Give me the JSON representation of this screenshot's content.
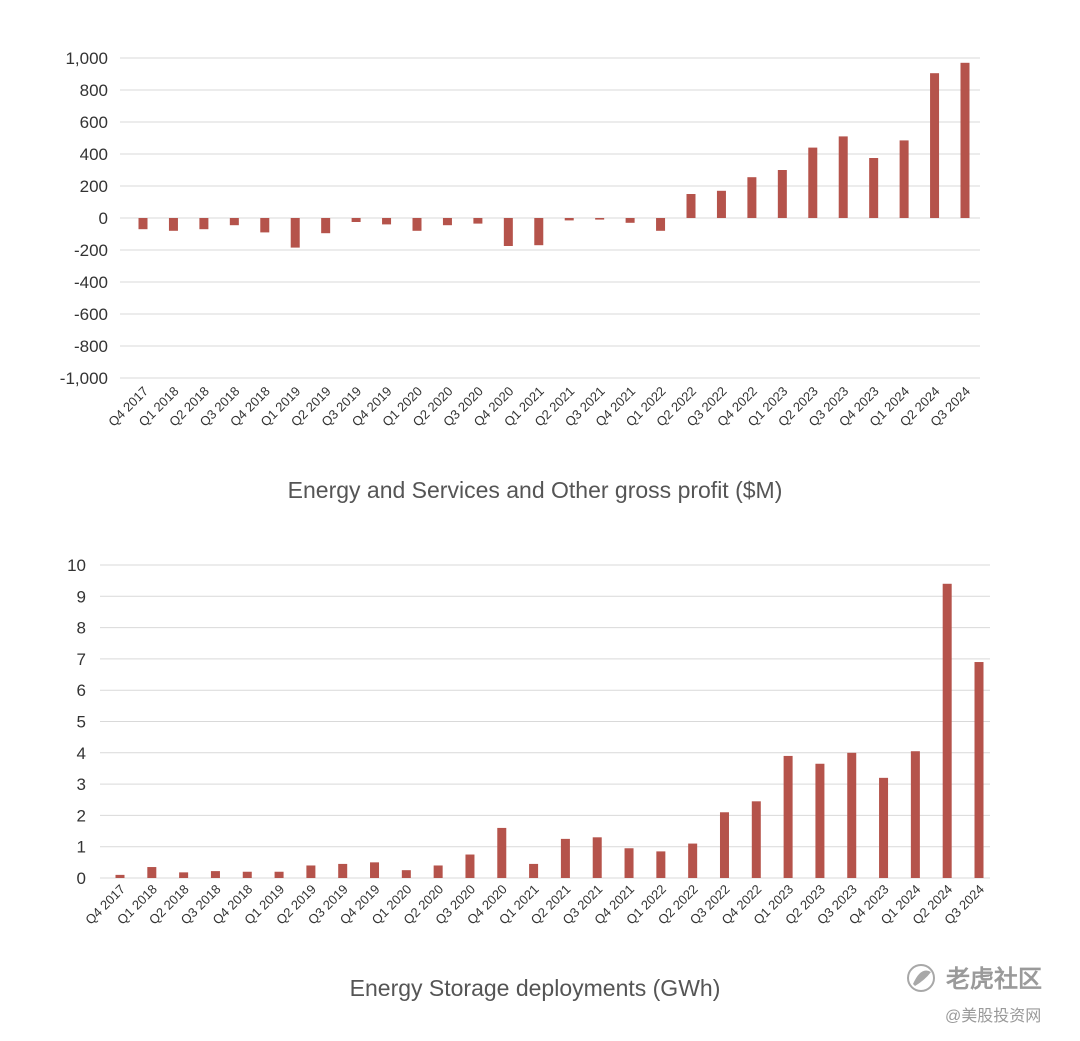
{
  "chart_data": [
    {
      "type": "bar",
      "title": "Energy and Services and Other gross profit ($M)",
      "xlabel": "",
      "ylabel": "",
      "ylim": [
        -1000,
        1000
      ],
      "yticks": [
        "1,000",
        "800",
        "600",
        "400",
        "200",
        "0",
        "-200",
        "-400",
        "-600",
        "-800",
        "-1,000"
      ],
      "ytick_values": [
        1000,
        800,
        600,
        400,
        200,
        0,
        -200,
        -400,
        -600,
        -800,
        -1000
      ],
      "categories": [
        "Q4 2017",
        "Q1 2018",
        "Q2 2018",
        "Q3 2018",
        "Q4 2018",
        "Q1 2019",
        "Q2 2019",
        "Q3 2019",
        "Q4 2019",
        "Q1 2020",
        "Q2 2020",
        "Q3 2020",
        "Q4 2020",
        "Q1 2021",
        "Q2 2021",
        "Q3 2021",
        "Q4 2021",
        "Q1 2022",
        "Q2 2022",
        "Q3 2022",
        "Q4 2022",
        "Q1 2023",
        "Q2 2023",
        "Q3 2023",
        "Q4 2023",
        "Q1 2024",
        "Q2 2024",
        "Q3 2024"
      ],
      "values": [
        -70,
        -80,
        -70,
        -45,
        -90,
        -185,
        -95,
        -25,
        -40,
        -80,
        -45,
        -35,
        -175,
        -170,
        -15,
        -10,
        -30,
        -80,
        150,
        170,
        255,
        300,
        440,
        510,
        375,
        485,
        905,
        970
      ],
      "bar_color": "#b5534b",
      "grid": true,
      "legend": "none"
    },
    {
      "type": "bar",
      "title": "Energy Storage deployments (GWh)",
      "xlabel": "",
      "ylabel": "",
      "ylim": [
        0,
        10
      ],
      "yticks": [
        "10",
        "9",
        "8",
        "7",
        "6",
        "5",
        "4",
        "3",
        "2",
        "1",
        "0"
      ],
      "ytick_values": [
        10,
        9,
        8,
        7,
        6,
        5,
        4,
        3,
        2,
        1,
        0
      ],
      "categories": [
        "Q4 2017",
        "Q1 2018",
        "Q2 2018",
        "Q3 2018",
        "Q4 2018",
        "Q1 2019",
        "Q2 2019",
        "Q3 2019",
        "Q4 2019",
        "Q1 2020",
        "Q2 2020",
        "Q3 2020",
        "Q4 2020",
        "Q1 2021",
        "Q2 2021",
        "Q3 2021",
        "Q4 2021",
        "Q1 2022",
        "Q2 2022",
        "Q3 2022",
        "Q4 2022",
        "Q1 2023",
        "Q2 2023",
        "Q3 2023",
        "Q4 2023",
        "Q1 2024",
        "Q2 2024",
        "Q3 2024"
      ],
      "values": [
        0.1,
        0.35,
        0.18,
        0.22,
        0.2,
        0.2,
        0.4,
        0.45,
        0.5,
        0.25,
        0.4,
        0.75,
        1.6,
        0.45,
        1.25,
        1.3,
        0.95,
        0.85,
        1.1,
        2.1,
        2.45,
        3.9,
        3.65,
        4.0,
        3.2,
        4.05,
        9.4,
        6.9
      ],
      "bar_color": "#b5534b",
      "grid": true,
      "legend": "none"
    }
  ],
  "watermark": {
    "line1": "老虎社区",
    "line2": "@美股投资网",
    "icon": "tiger-logo-icon"
  }
}
